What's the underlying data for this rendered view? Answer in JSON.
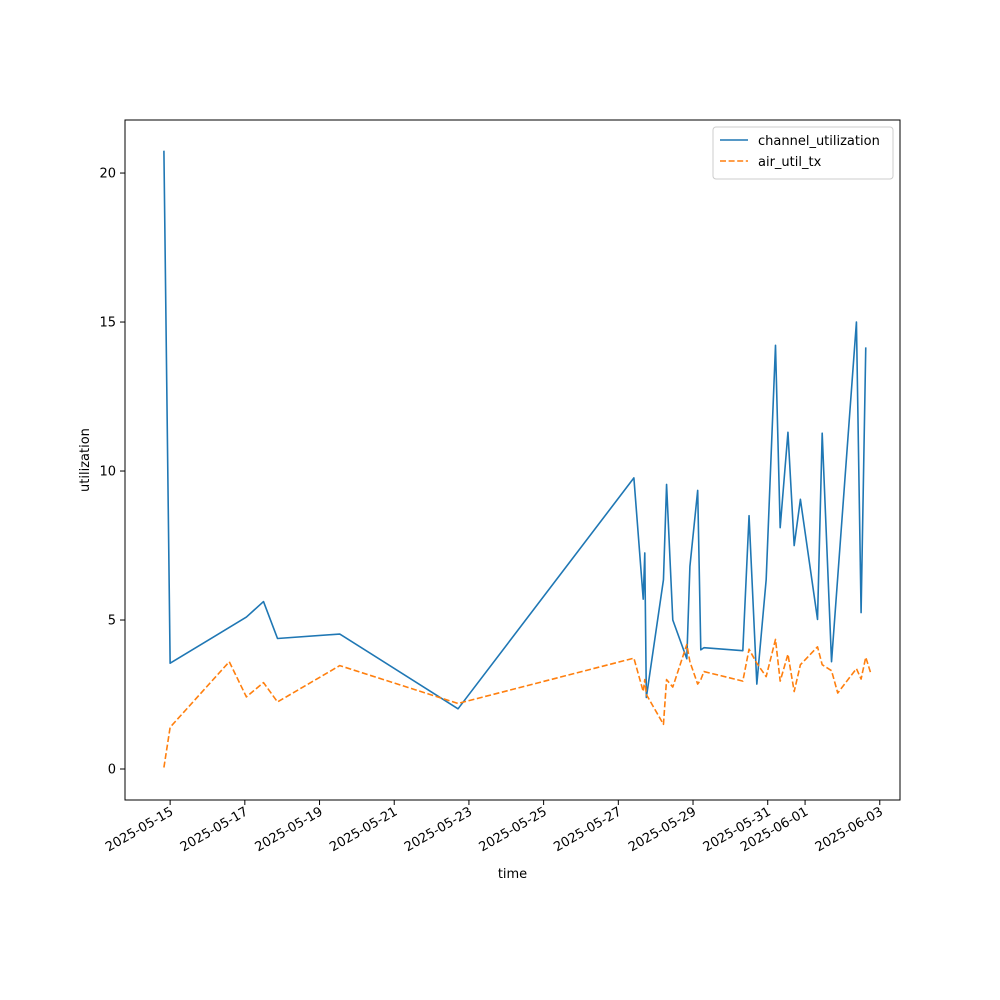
{
  "chart_data": {
    "type": "line",
    "title": "",
    "xlabel": "time",
    "ylabel": "utilization",
    "x_type": "date",
    "xlim": [
      "2025-05-13T19:00",
      "2025-06-03T13:00"
    ],
    "ylim": [
      -1.04,
      21.78
    ],
    "x_ticks": [
      "2025-05-15",
      "2025-05-17",
      "2025-05-19",
      "2025-05-21",
      "2025-05-23",
      "2025-05-25",
      "2025-05-27",
      "2025-05-29",
      "2025-05-31",
      "2025-06-01",
      "2025-06-03"
    ],
    "y_ticks": [
      0,
      5,
      10,
      15,
      20
    ],
    "grid": false,
    "legend_position": "top-right",
    "series": [
      {
        "name": "channel_utilization",
        "color": "#1f77b4",
        "style": "solid",
        "points": [
          [
            "2025-05-14T20:00",
            20.75
          ],
          [
            "2025-05-15T00:00",
            3.55
          ],
          [
            "2025-05-16T14:00",
            4.75
          ],
          [
            "2025-05-17T01:00",
            5.1
          ],
          [
            "2025-05-17T12:00",
            5.62
          ],
          [
            "2025-05-17T21:00",
            4.38
          ],
          [
            "2025-05-19T13:00",
            4.53
          ],
          [
            "2025-05-22T17:00",
            2.02
          ],
          [
            "2025-05-27T10:00",
            9.77
          ],
          [
            "2025-05-27T16:00",
            5.7
          ],
          [
            "2025-05-27T17:00",
            7.25
          ],
          [
            "2025-05-27T18:00",
            2.4
          ],
          [
            "2025-05-28T05:00",
            6.35
          ],
          [
            "2025-05-28T07:00",
            9.55
          ],
          [
            "2025-05-28T11:00",
            5.0
          ],
          [
            "2025-05-28T20:00",
            3.7
          ],
          [
            "2025-05-28T22:00",
            6.8
          ],
          [
            "2025-05-29T03:00",
            9.35
          ],
          [
            "2025-05-29T05:00",
            4.0
          ],
          [
            "2025-05-29T07:00",
            4.07
          ],
          [
            "2025-05-30T08:00",
            3.97
          ],
          [
            "2025-05-30T12:00",
            8.5
          ],
          [
            "2025-05-30T17:00",
            2.85
          ],
          [
            "2025-05-30T23:00",
            6.35
          ],
          [
            "2025-05-31T05:00",
            14.22
          ],
          [
            "2025-05-31T08:00",
            8.1
          ],
          [
            "2025-05-31T13:00",
            11.3
          ],
          [
            "2025-05-31T17:00",
            7.5
          ],
          [
            "2025-05-31T21:00",
            9.05
          ],
          [
            "2025-06-01T08:00",
            5.02
          ],
          [
            "2025-06-01T11:00",
            11.27
          ],
          [
            "2025-06-01T17:00",
            3.6
          ],
          [
            "2025-06-02T09:00",
            15.0
          ],
          [
            "2025-06-02T12:00",
            5.25
          ],
          [
            "2025-06-02T15:00",
            14.15
          ]
        ]
      },
      {
        "name": "air_util_tx",
        "color": "#ff7f0e",
        "style": "dashed",
        "points": [
          [
            "2025-05-14T20:00",
            0.05
          ],
          [
            "2025-05-15T00:00",
            1.4
          ],
          [
            "2025-05-16T14:00",
            3.6
          ],
          [
            "2025-05-17T01:00",
            2.42
          ],
          [
            "2025-05-17T12:00",
            2.9
          ],
          [
            "2025-05-17T21:00",
            2.25
          ],
          [
            "2025-05-19T13:00",
            3.47
          ],
          [
            "2025-05-22T17:00",
            2.2
          ],
          [
            "2025-05-27T10:00",
            3.72
          ],
          [
            "2025-05-27T16:00",
            2.6
          ],
          [
            "2025-05-27T17:00",
            3.0
          ],
          [
            "2025-05-27T18:00",
            2.5
          ],
          [
            "2025-05-28T05:00",
            1.5
          ],
          [
            "2025-05-28T07:00",
            3.0
          ],
          [
            "2025-05-28T11:00",
            2.75
          ],
          [
            "2025-05-28T20:00",
            4.18
          ],
          [
            "2025-05-28T22:00",
            3.6
          ],
          [
            "2025-05-29T03:00",
            2.85
          ],
          [
            "2025-05-29T05:00",
            3.0
          ],
          [
            "2025-05-29T07:00",
            3.27
          ],
          [
            "2025-05-30T08:00",
            2.95
          ],
          [
            "2025-05-30T12:00",
            4.02
          ],
          [
            "2025-05-30T17:00",
            3.55
          ],
          [
            "2025-05-30T23:00",
            3.1
          ],
          [
            "2025-05-31T05:00",
            4.35
          ],
          [
            "2025-05-31T08:00",
            2.95
          ],
          [
            "2025-05-31T13:00",
            3.85
          ],
          [
            "2025-05-31T17:00",
            2.6
          ],
          [
            "2025-05-31T21:00",
            3.5
          ],
          [
            "2025-06-01T08:00",
            4.1
          ],
          [
            "2025-06-01T11:00",
            3.5
          ],
          [
            "2025-06-01T17:00",
            3.3
          ],
          [
            "2025-06-01T21:00",
            2.55
          ],
          [
            "2025-06-02T09:00",
            3.37
          ],
          [
            "2025-06-02T12:00",
            3.02
          ],
          [
            "2025-06-02T15:00",
            3.75
          ],
          [
            "2025-06-02T18:00",
            3.25
          ]
        ]
      }
    ]
  }
}
